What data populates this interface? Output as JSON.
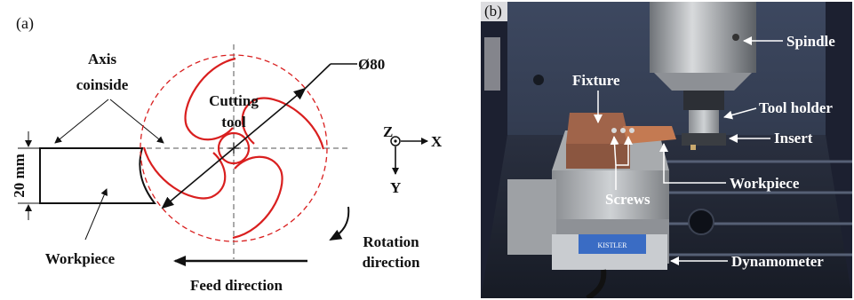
{
  "panel_a": {
    "tag": "(a)",
    "axis_label_1": "Axis",
    "axis_label_2": "coinside",
    "tool_label_1": "Cutting",
    "tool_label_2": "tool",
    "diameter": "Ø80",
    "thickness": "20 mm",
    "workpiece": "Workpiece",
    "rotation_1": "Rotation",
    "rotation_2": "direction",
    "feed": "Feed direction",
    "axis_z": "Z",
    "axis_x": "X",
    "axis_y": "Y",
    "colors": {
      "tool": "#d91f1f",
      "line": "#111111"
    }
  },
  "panel_b": {
    "tag": "(b)",
    "spindle": "Spindle",
    "fixture": "Fixture",
    "tool_holder": "Tool holder",
    "insert": "Insert",
    "workpiece": "Workpiece",
    "screws": "Screws",
    "dynamometer": "Dynamometer",
    "dyno_brand": "KISTLER"
  }
}
